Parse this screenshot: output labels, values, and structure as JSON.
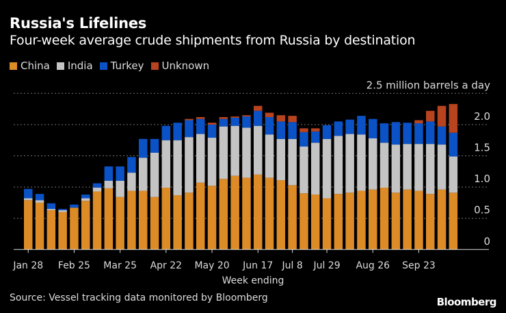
{
  "chart_data": {
    "type": "bar",
    "stacked": true,
    "title": "Russia's Lifelines",
    "subtitle": "Four-week average crude shipments from Russia by destination",
    "unit_label": "2.5 million barrels a day",
    "xlabel": "Week ending",
    "ylabel": "",
    "ylim": [
      0,
      2.5
    ],
    "yticks": [
      "0",
      "0.5",
      "1.0",
      "1.5",
      "2.0"
    ],
    "grid": true,
    "legend_position": "top-left",
    "source": "Source: Vessel tracking data monitored by Bloomberg",
    "logo": "Bloomberg",
    "categories": [
      "Jan 28",
      "Feb 4",
      "Feb 11",
      "Feb 18",
      "Feb 25",
      "Mar 4",
      "Mar 11",
      "Mar 18",
      "Mar 25",
      "Apr 1",
      "Apr 8",
      "Apr 15",
      "Apr 22",
      "Apr 29",
      "May 6",
      "May 13",
      "May 20",
      "May 27",
      "Jun 3",
      "Jun 10",
      "Jun 17",
      "Jun 24",
      "Jul 1",
      "Jul 8",
      "Jul 15",
      "Jul 22",
      "Jul 29",
      "Aug 5",
      "Aug 12",
      "Aug 19",
      "Aug 26",
      "Sep 2",
      "Sep 9",
      "Sep 16",
      "Sep 23",
      "Sep 30",
      "Oct 7",
      "Oct 14"
    ],
    "xtick_labels": [
      "Jan 28",
      "Feb 25",
      "Mar 25",
      "Apr 22",
      "May 20",
      "Jun 17",
      "Jul 8",
      "Jul 29",
      "Aug 26",
      "Sep 23"
    ],
    "series": [
      {
        "name": "China",
        "color": "#dd8b27",
        "values": [
          0.79,
          0.75,
          0.63,
          0.6,
          0.67,
          0.78,
          0.93,
          0.98,
          0.84,
          0.94,
          0.94,
          0.84,
          0.99,
          0.87,
          0.91,
          1.07,
          1.02,
          1.13,
          1.18,
          1.15,
          1.2,
          1.15,
          1.11,
          1.03,
          0.9,
          0.88,
          0.82,
          0.89,
          0.91,
          0.94,
          0.96,
          0.99,
          0.91,
          0.96,
          0.94,
          0.89,
          0.96,
          0.91
        ]
      },
      {
        "name": "India",
        "color": "#c4c4c4",
        "values": [
          0.03,
          0.04,
          0.02,
          0.03,
          0.0,
          0.04,
          0.06,
          0.12,
          0.26,
          0.29,
          0.53,
          0.71,
          0.76,
          0.88,
          0.89,
          0.78,
          0.77,
          0.84,
          0.8,
          0.8,
          0.78,
          0.69,
          0.66,
          0.74,
          0.75,
          0.83,
          0.95,
          0.93,
          0.94,
          0.9,
          0.82,
          0.72,
          0.77,
          0.73,
          0.75,
          0.8,
          0.72,
          0.58
        ]
      },
      {
        "name": "Turkey",
        "color": "#0a52c6",
        "values": [
          0.15,
          0.1,
          0.09,
          0.02,
          0.05,
          0.06,
          0.07,
          0.23,
          0.23,
          0.25,
          0.3,
          0.22,
          0.23,
          0.28,
          0.27,
          0.24,
          0.21,
          0.12,
          0.13,
          0.18,
          0.24,
          0.28,
          0.28,
          0.27,
          0.23,
          0.18,
          0.22,
          0.23,
          0.23,
          0.3,
          0.31,
          0.31,
          0.36,
          0.34,
          0.33,
          0.36,
          0.29,
          0.38
        ]
      },
      {
        "name": "Unknown",
        "color": "#b8441f",
        "values": [
          0,
          0,
          0,
          0,
          0,
          0,
          0,
          0,
          0,
          0,
          0,
          0,
          0,
          0,
          0.02,
          0.03,
          0.03,
          0.03,
          0.02,
          0.02,
          0.08,
          0.07,
          0.1,
          0.1,
          0.06,
          0.05,
          0,
          0,
          0,
          0,
          0,
          0,
          0,
          0,
          0.05,
          0.17,
          0.33,
          0.46
        ]
      }
    ]
  }
}
